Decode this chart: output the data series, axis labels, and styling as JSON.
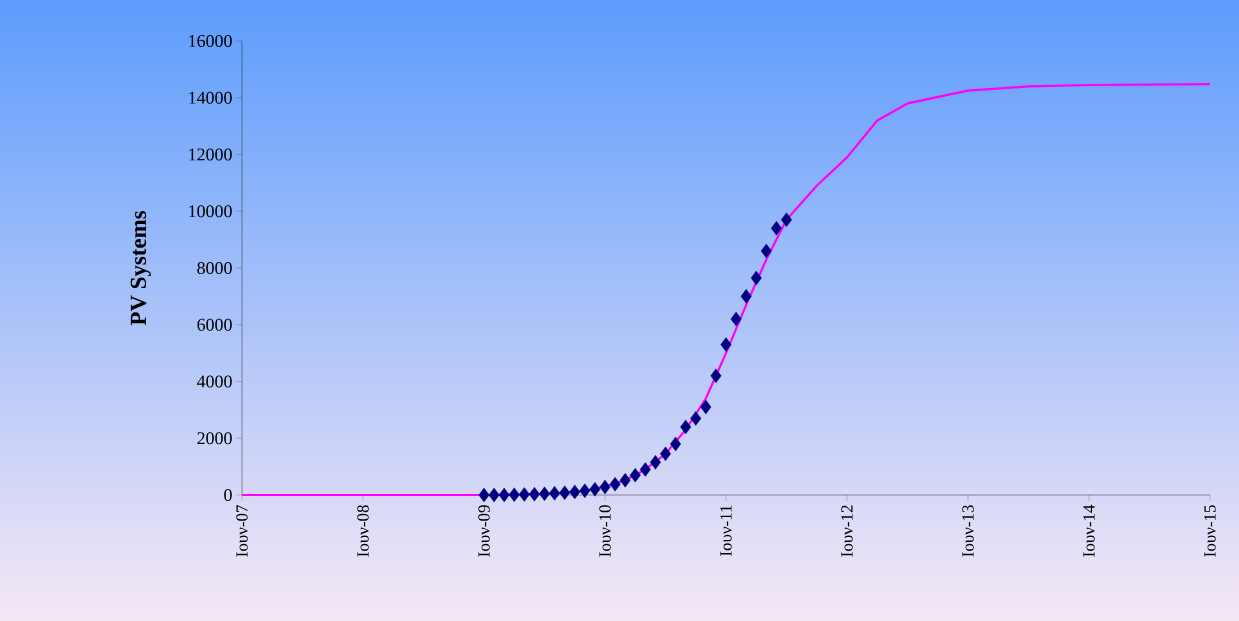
{
  "chart_data": {
    "type": "line",
    "ylabel": "PV Systems",
    "xlim": [
      "2007-06",
      "2015-06"
    ],
    "xticks": [
      {
        "value": "2007-06",
        "label": "Ιουν-07"
      },
      {
        "value": "2008-06",
        "label": "Ιουν-08"
      },
      {
        "value": "2009-06",
        "label": "Ιουν-09"
      },
      {
        "value": "2010-06",
        "label": "Ιουν-10"
      },
      {
        "value": "2011-06",
        "label": "Ιουν-11"
      },
      {
        "value": "2012-06",
        "label": "Ιουν-12"
      },
      {
        "value": "2013-06",
        "label": "Ιουν-13"
      },
      {
        "value": "2014-06",
        "label": "Ιουν-14"
      },
      {
        "value": "2015-06",
        "label": "Ιουν-15"
      }
    ],
    "ylim": [
      0,
      16000
    ],
    "yticks": [
      0,
      2000,
      4000,
      6000,
      8000,
      10000,
      12000,
      14000,
      16000
    ],
    "grid": false,
    "series": [
      {
        "color": "#ff00ff",
        "marker": "none",
        "line_style": "solid",
        "x": [
          "2007-06",
          "2008-06",
          "2009-06",
          "2009-10",
          "2010-01",
          "2010-04",
          "2010-06",
          "2010-08",
          "2010-10",
          "2010-12",
          "2011-02",
          "2011-04",
          "2011-06",
          "2011-08",
          "2011-10",
          "2011-12",
          "2012-03",
          "2012-06",
          "2012-09",
          "2012-12",
          "2013-06",
          "2013-12",
          "2014-06",
          "2015-06"
        ],
        "values": [
          0,
          0,
          0,
          20,
          60,
          150,
          300,
          520,
          900,
          1450,
          2300,
          3400,
          5000,
          6700,
          8300,
          9700,
          10900,
          11900,
          13200,
          13800,
          14250,
          14400,
          14450,
          14480
        ]
      },
      {
        "type": "scatter",
        "color": "#000080",
        "marker": "diamond",
        "x": [
          "2009-06",
          "2009-07",
          "2009-08",
          "2009-09",
          "2009-10",
          "2009-11",
          "2009-12",
          "2010-01",
          "2010-02",
          "2010-03",
          "2010-04",
          "2010-05",
          "2010-06",
          "2010-07",
          "2010-08",
          "2010-09",
          "2010-10",
          "2010-11",
          "2010-12",
          "2011-01",
          "2011-02",
          "2011-03",
          "2011-04",
          "2011-05",
          "2011-06",
          "2011-07",
          "2011-08",
          "2011-09",
          "2011-10",
          "2011-11",
          "2011-12"
        ],
        "values": [
          0,
          0,
          0,
          10,
          20,
          30,
          40,
          60,
          80,
          110,
          150,
          200,
          280,
          380,
          520,
          700,
          900,
          1150,
          1450,
          1800,
          2400,
          2700,
          3100,
          4200,
          5300,
          6200,
          7000,
          7650,
          8600,
          9400,
          9700
        ]
      }
    ]
  }
}
